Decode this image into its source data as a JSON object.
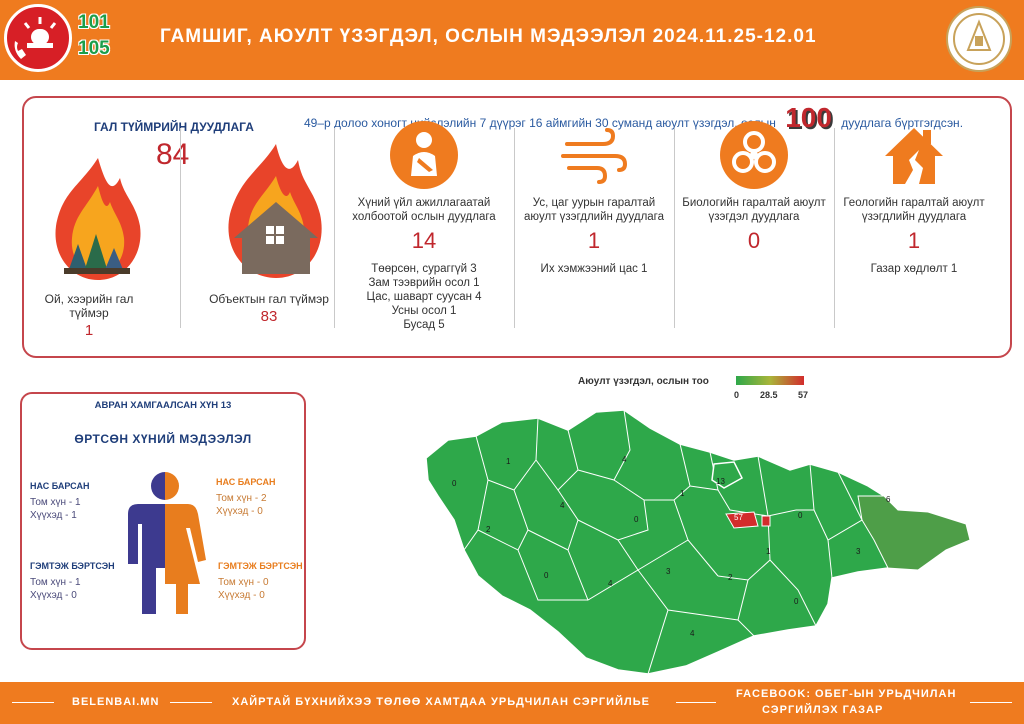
{
  "header": {
    "hotline_1": "101",
    "hotline_2": "105",
    "title": "ГАМШИГ, АЮУЛТ ҮЗЭГДЭЛ, ОСЛЫН МЭДЭЭЛЭЛ  2024.11.25-12.01"
  },
  "summary": {
    "text_before": "49–р долоо хоногт нийслэлийн 7 дүүрэг 16 аймгийн 30 суманд аюулт үзэгдэл, ослын",
    "total": "100",
    "text_after": "дуудлага бүртгэгдсэн."
  },
  "fire": {
    "title": "ГАЛ ТҮЙМРИЙН ДУУДЛАГА",
    "total": "84",
    "forest_label": "Ой, хээрийн гал түймэр",
    "forest_value": "1",
    "object_label": "Объектын гал түймэр",
    "object_value": "83"
  },
  "categories": [
    {
      "title": "Хүний үйл ажиллагаатай холбоотой ослын дуудлага",
      "value": "14",
      "details": [
        "Төөрсөн, сураггүй 3",
        "Зам тээврийн осол 1",
        "Цас, шаварт суусан 4",
        "Усны осол 1",
        "Бусад 5"
      ]
    },
    {
      "title": "Ус, цаг уурын гаралтай аюулт үзэгдлийн дуудлага",
      "value": "1",
      "details": [
        "Их хэмжээний цас 1"
      ]
    },
    {
      "title": "Биологийн гаралтай аюулт үзэгдэл дуудлага",
      "value": "0",
      "details": []
    },
    {
      "title": "Геологийн гаралтай аюулт үзэгдлийн дуудлага",
      "value": "1",
      "details": [
        "Газар хөдлөлт 1"
      ]
    }
  ],
  "casualties": {
    "rescued": "АВРАН ХАМГААЛСАН ХҮН 13",
    "title": "ӨРТСӨН ХҮНИЙ МЭДЭЭЛЭЛ",
    "male_dead": {
      "heading": "НАС БАРСАН",
      "adult": "Том хүн - 1",
      "child": "Хүүхэд - 1"
    },
    "male_injured": {
      "heading": "ГЭМТЭЖ БЭРТСЭН",
      "adult": "Том хүн - 1",
      "child": "Хүүхэд - 0"
    },
    "female_dead": {
      "heading": "НАС БАРСАН",
      "adult": "Том хүн - 2",
      "child": "Хүүхэд - 0"
    },
    "female_injured": {
      "heading": "ГЭМТЭЖ БЭРТСЭН",
      "adult": "Том хүн - 0",
      "child": "Хүүхэд - 0"
    },
    "colors": {
      "male": "#3d3a8f",
      "female": "#e87d1e"
    }
  },
  "map": {
    "legend_title": "Аюулт үзэгдэл, ослын тоо",
    "legend_min": "0",
    "legend_mid": "28.5",
    "legend_max": "57",
    "colors": {
      "low": "#2ea84a",
      "high": "#d22c2c"
    },
    "region_values": [
      "0",
      "1",
      "4",
      "2",
      "4",
      "1",
      "13",
      "57",
      "0",
      "6",
      "0",
      "4",
      "0",
      "3",
      "3",
      "1",
      "2",
      "0",
      "4"
    ]
  },
  "footer": {
    "left": "BELENBAI.MN",
    "center": "ХАЙРТАЙ БҮХНИЙХЭЭ ТӨЛӨӨ ХАМТДАА УРЬДЧИЛАН СЭРГИЙЛЬЕ",
    "right_1": "FACEBOOK: ОБЕГ-ЫН УРЬДЧИЛАН",
    "right_2": "СЭРГИЙЛЭХ ГАЗАР"
  }
}
